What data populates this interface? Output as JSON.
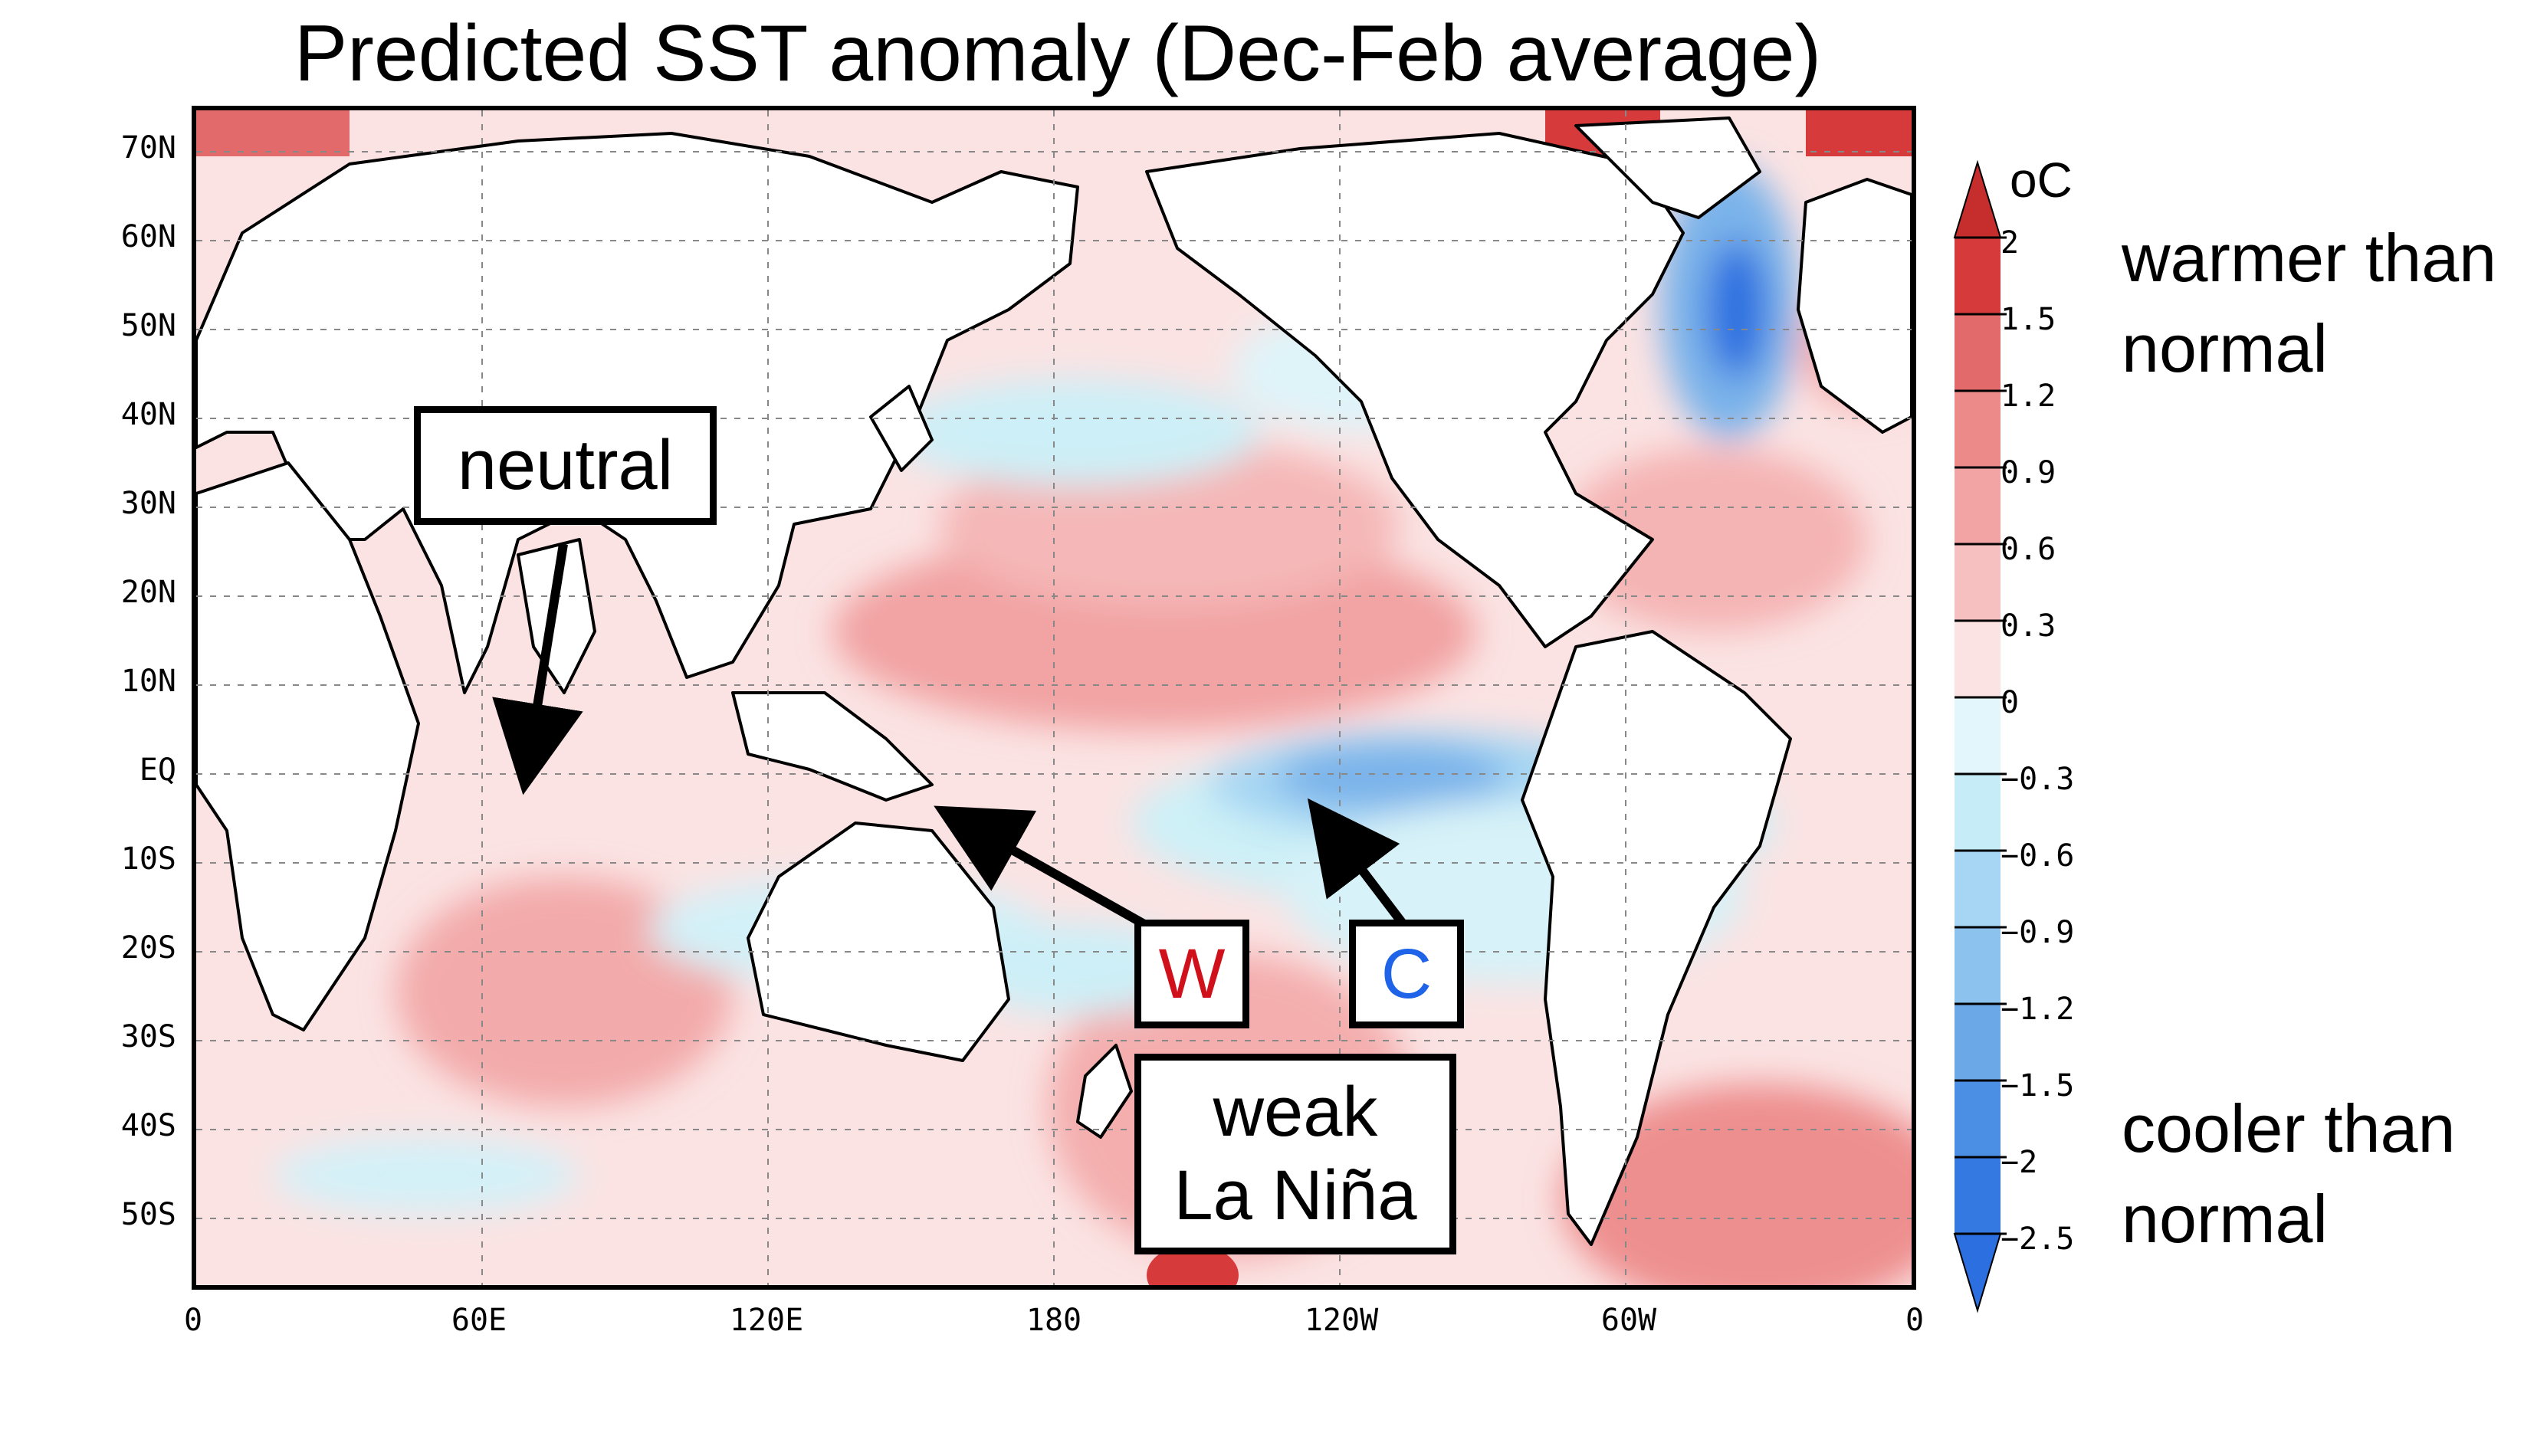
{
  "title": "Predicted SST anomaly (Dec-Feb average)",
  "latitude_labels": [
    "70N",
    "60N",
    "50N",
    "40N",
    "30N",
    "20N",
    "10N",
    "EQ",
    "10S",
    "20S",
    "30S",
    "40S",
    "50S"
  ],
  "longitude_labels": [
    "0",
    "60E",
    "120E",
    "180",
    "120W",
    "60W",
    "0"
  ],
  "annotations": {
    "neutral": "neutral",
    "warm_marker": "W",
    "cool_marker": "C",
    "enso_state_line1": "weak",
    "enso_state_line2": "La Niña"
  },
  "colorbar": {
    "unit": "oC",
    "ticks": [
      "2",
      "1.5",
      "1.2",
      "0.9",
      "0.6",
      "0.3",
      "0",
      "−0.3",
      "−0.6",
      "−0.9",
      "−1.2",
      "−1.5",
      "−2",
      "−2.5"
    ],
    "warm_label_line1": "warmer than",
    "warm_label_line2": "normal",
    "cool_label_line1": "cooler than",
    "cool_label_line2": "normal"
  },
  "colors": {
    "warm_strong": "#d63a3a",
    "warm": "#ee8f8f",
    "warm_light": "#f8c9c9",
    "neutral": "#ffffff",
    "cool_light": "#cdf0f7",
    "cool": "#8fc2ee",
    "cool_strong": "#2b6fe0",
    "warm_marker": "#d0101b",
    "cool_marker": "#1f63e8"
  }
}
